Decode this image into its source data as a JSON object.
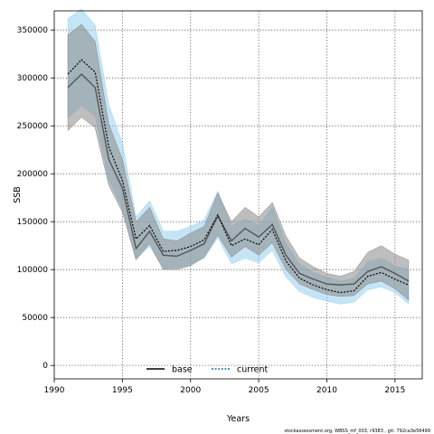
{
  "chart_data": {
    "type": "line",
    "xlabel": "Years",
    "ylabel": "SSB",
    "xlim": [
      1990,
      2017
    ],
    "ylim": [
      -14000,
      370000
    ],
    "xticks": [
      1990,
      1995,
      2000,
      2005,
      2010,
      2015
    ],
    "yticks": [
      0,
      50000,
      100000,
      150000,
      200000,
      250000,
      300000,
      350000
    ],
    "grid": "dotted",
    "legend_position": "bottom-center",
    "x": [
      1991,
      1992,
      1993,
      1994,
      1995,
      1996,
      1997,
      1998,
      1999,
      2000,
      2001,
      2002,
      2003,
      2004,
      2005,
      2006,
      2007,
      2008,
      2009,
      2010,
      2011,
      2012,
      2013,
      2014,
      2015,
      2016
    ],
    "series": [
      {
        "name": "base",
        "color": "#000000",
        "band_color": "#888888",
        "line_style": "solid",
        "values": [
          290000,
          304000,
          290000,
          215000,
          185000,
          122000,
          140000,
          115000,
          114000,
          120000,
          127000,
          156000,
          130000,
          143000,
          134000,
          147000,
          115000,
          96000,
          90000,
          85000,
          84000,
          85000,
          98000,
          103000,
          96000,
          88000
        ],
        "lower": [
          245000,
          259000,
          248000,
          188000,
          160000,
          110000,
          127000,
          100000,
          100000,
          104000,
          113000,
          136000,
          113000,
          124000,
          115000,
          128000,
          100000,
          85000,
          79000,
          74000,
          72000,
          73000,
          85000,
          88000,
          80000,
          68000
        ],
        "upper": [
          345000,
          356000,
          338000,
          252000,
          215000,
          150000,
          165000,
          132000,
          130000,
          138000,
          145000,
          180000,
          150000,
          165000,
          155000,
          170000,
          135000,
          112000,
          103000,
          96000,
          93000,
          98000,
          118000,
          125000,
          116000,
          110000
        ]
      },
      {
        "name": "current",
        "color": "#1f6fa8",
        "band_color": "#9fd3f0",
        "line_style": "dotted",
        "values": [
          304000,
          319000,
          306000,
          228000,
          193000,
          132000,
          146000,
          119000,
          120000,
          124000,
          131000,
          157000,
          125000,
          132000,
          126000,
          142000,
          109000,
          91000,
          84000,
          79000,
          76000,
          78000,
          93000,
          97000,
          90000,
          84000
        ],
        "lower": [
          258000,
          271000,
          260000,
          194000,
          164000,
          112000,
          124000,
          101000,
          102000,
          105000,
          112000,
          133000,
          106000,
          112000,
          107000,
          120000,
          92000,
          77000,
          71000,
          67000,
          64000,
          66000,
          79000,
          82000,
          76000,
          64000
        ],
        "upper": [
          362000,
          372000,
          355000,
          272000,
          232000,
          155000,
          172000,
          140000,
          140000,
          145000,
          152000,
          182000,
          145000,
          153000,
          146000,
          165000,
          127000,
          106000,
          97000,
          92000,
          88000,
          91000,
          108000,
          112000,
          104000,
          100000
        ]
      }
    ],
    "footnote": "stockassessment.org, WBSS_mf_003, r9383 , git: 792ca3e56499"
  }
}
